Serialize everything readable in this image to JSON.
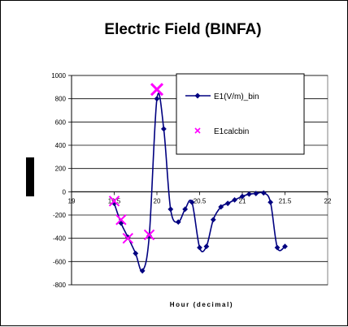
{
  "chart_data": {
    "type": "line",
    "title": "Electric Field (BINFA)",
    "xlabel": "Hour (decimal)",
    "ylabel": "",
    "xlim": [
      19,
      22
    ],
    "ylim": [
      -800,
      1000
    ],
    "xticks": [
      19,
      19.5,
      20,
      20.5,
      21,
      21.5,
      22
    ],
    "xtick_labels": [
      "19",
      "19.5",
      "20",
      "20.5",
      "21",
      "21.5",
      "22"
    ],
    "yticks": [
      1000,
      800,
      600,
      400,
      200,
      0,
      -200,
      -400,
      -600,
      -800
    ],
    "grid": "horizontal",
    "legend": "top-right",
    "series": [
      {
        "name": "E1(V/m)_bin",
        "color": "#000080",
        "marker": "diamond",
        "line": true,
        "x": [
          19.5,
          19.58,
          19.66,
          19.75,
          19.83,
          19.91,
          20.0,
          20.08,
          20.16,
          20.25,
          20.33,
          20.41,
          20.5,
          20.58,
          20.66,
          20.75,
          20.83,
          20.91,
          21.0,
          21.08,
          21.16,
          21.25,
          21.33,
          21.41,
          21.5
        ],
        "y": [
          -100,
          -270,
          -390,
          -530,
          -680,
          -380,
          800,
          540,
          -150,
          -260,
          -150,
          -90,
          -480,
          -470,
          -240,
          -130,
          -100,
          -70,
          -40,
          -20,
          -15,
          -10,
          -90,
          -480,
          -470
        ]
      },
      {
        "name": "E1calcbin",
        "color": "#ff00ff",
        "marker": "x",
        "line": false,
        "x": [
          19.5,
          19.58,
          19.66,
          19.91,
          20.0
        ],
        "y": [
          -80,
          -240,
          -400,
          -370,
          880
        ]
      }
    ]
  }
}
